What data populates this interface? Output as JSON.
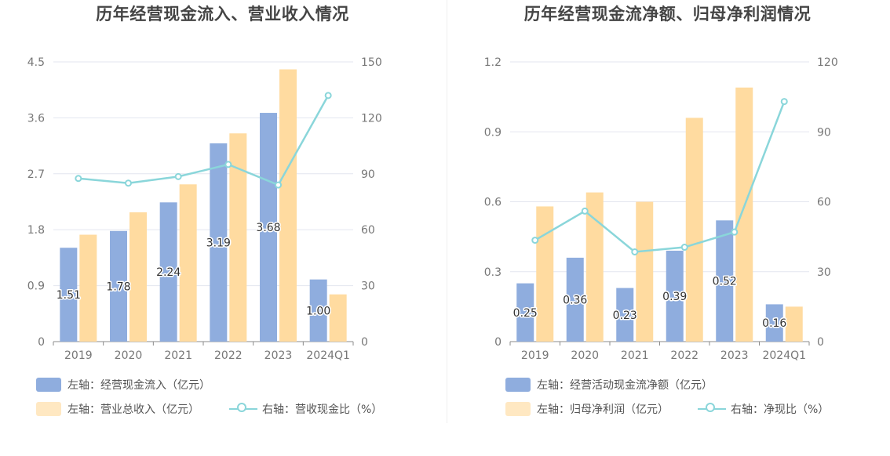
{
  "colors": {
    "bar1": "#8fadde",
    "bar2": "#ffdba0",
    "line": "#8ad6da",
    "grid": "#e3e6ef",
    "axis": "#8b8b8b"
  },
  "chart_data": [
    {
      "type": "bar",
      "title": "历年经营现金流入、营业收入情况",
      "categories": [
        "2019",
        "2020",
        "2021",
        "2022",
        "2023",
        "2024Q1"
      ],
      "left_axis": {
        "ylim": [
          0,
          4.5
        ],
        "ticks": [
          "0",
          "0.9",
          "1.8",
          "2.7",
          "3.6",
          "4.5"
        ]
      },
      "right_axis": {
        "ylim": [
          0,
          150
        ],
        "ticks": [
          "0",
          "30",
          "60",
          "90",
          "120",
          "150"
        ]
      },
      "series": [
        {
          "name": "左轴：经营现金流入（亿元）",
          "axis": "left",
          "kind": "bar",
          "values": [
            1.51,
            1.78,
            2.24,
            3.19,
            3.68,
            1.0
          ],
          "labels": [
            "1.51",
            "1.78",
            "2.24",
            "3.19",
            "3.68",
            "1.00"
          ]
        },
        {
          "name": "左轴：营业总收入（亿元）",
          "axis": "left",
          "kind": "bar",
          "values": [
            1.72,
            2.08,
            2.53,
            3.35,
            4.38,
            0.76
          ]
        },
        {
          "name": "右轴：营收现金比（%）",
          "axis": "right",
          "kind": "line",
          "values": [
            87.5,
            85.0,
            88.5,
            95.0,
            84.0,
            132.0
          ]
        }
      ],
      "legend": [
        "左轴：经营现金流入（亿元）",
        "左轴：营业总收入（亿元）",
        "右轴：营收现金比（%）"
      ]
    },
    {
      "type": "bar",
      "title": "历年经营现金流净额、归母净利润情况",
      "categories": [
        "2019",
        "2020",
        "2021",
        "2022",
        "2023",
        "2024Q1"
      ],
      "left_axis": {
        "ylim": [
          0,
          1.2
        ],
        "ticks": [
          "0",
          "0.3",
          "0.6",
          "0.9",
          "1.2"
        ]
      },
      "right_axis": {
        "ylim": [
          0,
          120
        ],
        "ticks": [
          "0",
          "30",
          "60",
          "90",
          "120"
        ]
      },
      "series": [
        {
          "name": "左轴：经营活动现金流净额（亿元）",
          "axis": "left",
          "kind": "bar",
          "values": [
            0.25,
            0.36,
            0.23,
            0.39,
            0.52,
            0.16
          ],
          "labels": [
            "0.25",
            "0.36",
            "0.23",
            "0.39",
            "0.52",
            "0.16"
          ]
        },
        {
          "name": "左轴：归母净利润（亿元）",
          "axis": "left",
          "kind": "bar",
          "values": [
            0.58,
            0.64,
            0.6,
            0.96,
            1.09,
            0.15
          ]
        },
        {
          "name": "右轴：净现比（%）",
          "axis": "right",
          "kind": "line",
          "values": [
            43.5,
            56.0,
            38.5,
            40.5,
            47.0,
            103.0
          ]
        }
      ],
      "legend": [
        "左轴：经营活动现金流净额（亿元）",
        "左轴：归母净利润（亿元）",
        "右轴：净现比（%）"
      ]
    }
  ]
}
